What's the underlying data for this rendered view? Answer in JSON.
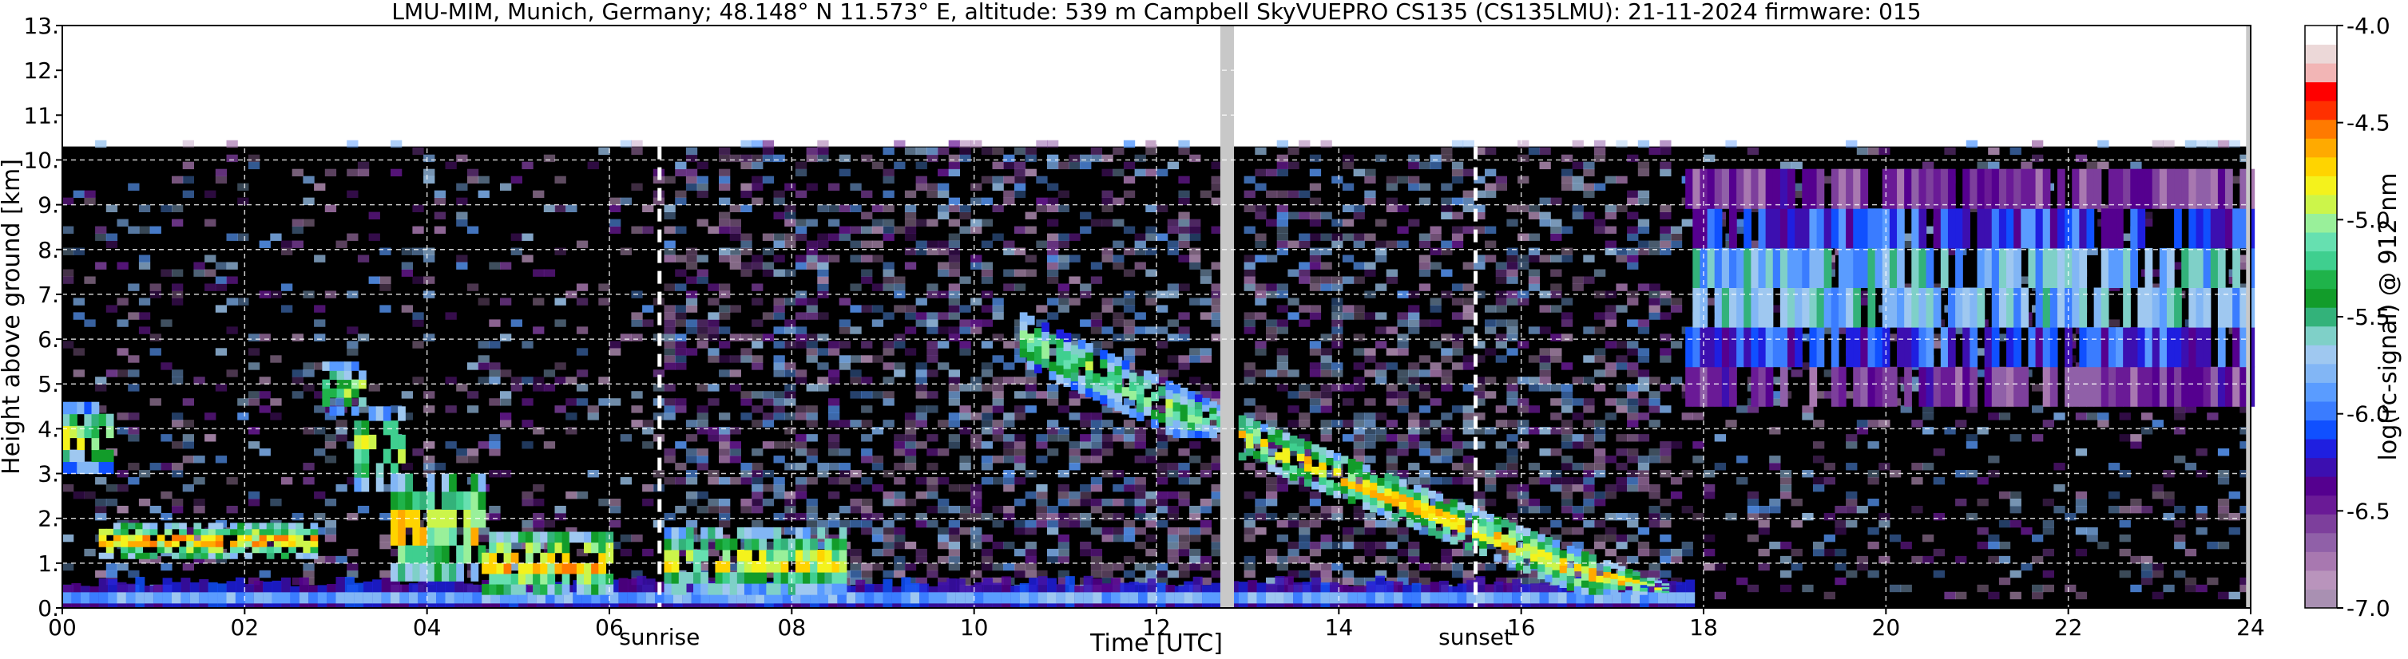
{
  "chart_data": {
    "type": "heatmap",
    "title": "LMU-MIM, Munich, Germany; 48.148° N 11.573° E, altitude: 539 m    Campbell SkyVUEPRO CS135 (CS135LMU): 21-11-2024    firmware: 015",
    "xlabel": "Time [UTC]",
    "ylabel": "Height above ground [km]",
    "xlim": [
      0,
      24
    ],
    "ylim": [
      0,
      13
    ],
    "x_ticks": [
      "00",
      "02",
      "04",
      "06",
      "08",
      "10",
      "12",
      "14",
      "16",
      "18",
      "20",
      "22",
      "24"
    ],
    "y_ticks": [
      "0.",
      "1.",
      "2.",
      "3.",
      "4.",
      "5.",
      "6.",
      "7.",
      "8.",
      "9.",
      "10.",
      "11.",
      "12.",
      "13."
    ],
    "grid": true,
    "max_range_km": 10.3,
    "colorbar": {
      "label": "log(rc-signal) @ 912 nm",
      "range": [
        -7.0,
        -4.0
      ],
      "ticks": [
        "-4.0",
        "-4.5",
        "-5.0",
        "-5.5",
        "-6.0",
        "-6.5",
        "-7.0"
      ],
      "colors": [
        "#a990b2",
        "#b994bc",
        "#a878b0",
        "#9060a8",
        "#7d3f9c",
        "#6a1a96",
        "#55008f",
        "#3c0fb0",
        "#1f1fe0",
        "#1050ff",
        "#3a7cff",
        "#5a9cff",
        "#82b6f5",
        "#9fc8f0",
        "#7fd0c8",
        "#33b27a",
        "#129c2a",
        "#1fb34a",
        "#3fcf8f",
        "#66e0b0",
        "#99f09a",
        "#ccf54a",
        "#f4f21c",
        "#ffd400",
        "#ffaa00",
        "#ff7a00",
        "#ff3000",
        "#ff0000",
        "#f2b5b5",
        "#ecd8d8",
        "#ffffff"
      ]
    },
    "annotations": [
      {
        "label": "sunrise",
        "time": 6.55
      },
      {
        "label": "sunset",
        "time": 15.5
      }
    ],
    "data_gaps": [
      {
        "start": 12.7,
        "end": 12.85
      },
      {
        "start": 23.95,
        "end": 24.0
      }
    ],
    "cloud_layers": [
      {
        "start": 0.0,
        "end": 0.5,
        "base_km": 3.0,
        "top_km": 4.6,
        "intensity": -4.6
      },
      {
        "start": 0.4,
        "end": 2.8,
        "base_km": 1.1,
        "top_km": 1.9,
        "intensity": -4.3
      },
      {
        "start": 2.85,
        "end": 3.3,
        "base_km": 4.3,
        "top_km": 5.5,
        "intensity": -4.7
      },
      {
        "start": 3.2,
        "end": 3.7,
        "base_km": 2.6,
        "top_km": 4.5,
        "intensity": -4.6
      },
      {
        "start": 3.6,
        "end": 4.6,
        "base_km": 0.6,
        "top_km": 3.0,
        "intensity": -4.4
      },
      {
        "start": 4.6,
        "end": 6.0,
        "base_km": 0.3,
        "top_km": 1.7,
        "intensity": -4.3
      },
      {
        "start": 6.6,
        "end": 8.6,
        "base_km": 0.3,
        "top_km": 1.8,
        "intensity": -4.5
      },
      {
        "start": 10.5,
        "end": 12.8,
        "base_km": 3.8,
        "top_km": 6.0,
        "intensity": -4.7
      },
      {
        "start": 12.9,
        "end": 17.6,
        "base_km": 0.5,
        "top_km": 4.3,
        "intensity": -4.4
      },
      {
        "start": 17.8,
        "end": 24.0,
        "base_km": 4.5,
        "top_km": 9.8,
        "intensity": -5.3
      }
    ],
    "boundary_layer": {
      "start": 0.0,
      "end": 17.8,
      "top_km": 0.6,
      "intensity": -6.4
    }
  }
}
